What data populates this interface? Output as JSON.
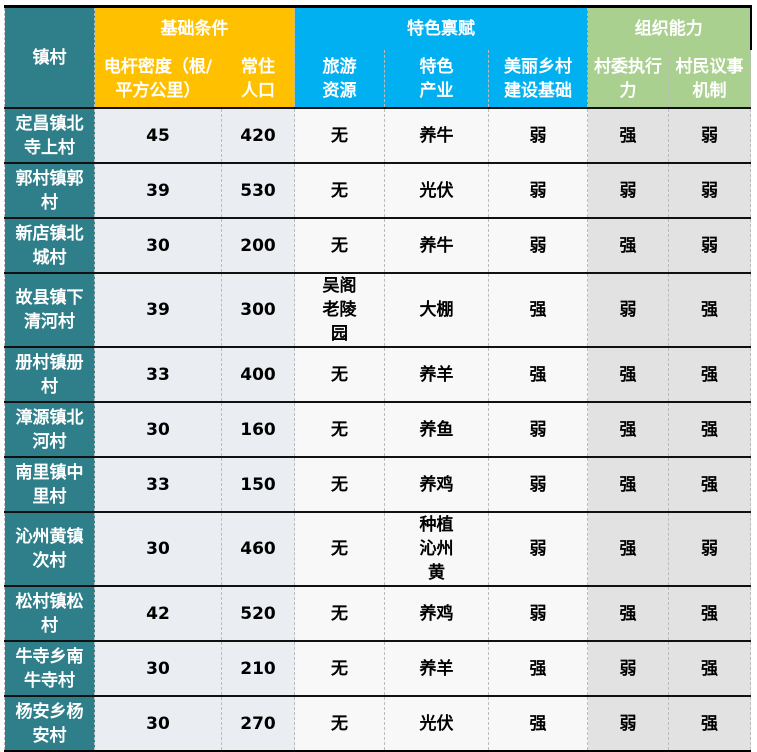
{
  "header": {
    "col0": "镇村",
    "groups": [
      {
        "label": "基础条件",
        "color": "#FFC000"
      },
      {
        "label": "特色禀赋",
        "color": "#00B0F0"
      },
      {
        "label": "组织能力",
        "color": "#A9D08E"
      }
    ],
    "subs": [
      "电杆密度（根/平方公里）",
      "常住人口",
      "旅游资源",
      "特色产业",
      "美丽乡村建设基础",
      "村委执行力",
      "村民议事机制"
    ]
  },
  "rows": [
    {
      "name": "定昌镇北寺上村",
      "cells": [
        "45",
        "420",
        "无",
        "养牛",
        "弱",
        "强",
        "弱"
      ]
    },
    {
      "name": "郭村镇郭村",
      "cells": [
        "39",
        "530",
        "无",
        "光伏",
        "弱",
        "弱",
        "弱"
      ]
    },
    {
      "name": "新店镇北城村",
      "cells": [
        "30",
        "200",
        "无",
        "养牛",
        "弱",
        "强",
        "弱"
      ]
    },
    {
      "name": "故县镇下清河村",
      "cells": [
        "39",
        "300",
        "吴阁老陵园",
        "大棚",
        "强",
        "弱",
        "强"
      ]
    },
    {
      "name": "册村镇册村",
      "cells": [
        "33",
        "400",
        "无",
        "养羊",
        "强",
        "强",
        "强"
      ]
    },
    {
      "name": "漳源镇北河村",
      "cells": [
        "30",
        "160",
        "无",
        "养鱼",
        "弱",
        "强",
        "强"
      ]
    },
    {
      "name": "南里镇中里村",
      "cells": [
        "33",
        "150",
        "无",
        "养鸡",
        "弱",
        "强",
        "强"
      ]
    },
    {
      "name": "沁州黄镇次村",
      "cells": [
        "30",
        "460",
        "无",
        "种植沁州黄",
        "弱",
        "强",
        "弱"
      ]
    },
    {
      "name": "松村镇松村",
      "cells": [
        "42",
        "520",
        "无",
        "养鸡",
        "弱",
        "强",
        "强"
      ]
    },
    {
      "name": "牛寺乡南牛寺村",
      "cells": [
        "30",
        "210",
        "无",
        "养羊",
        "强",
        "弱",
        "强"
      ]
    },
    {
      "name": "杨安乡杨安村",
      "cells": [
        "30",
        "270",
        "无",
        "光伏",
        "强",
        "弱",
        "强"
      ]
    }
  ]
}
